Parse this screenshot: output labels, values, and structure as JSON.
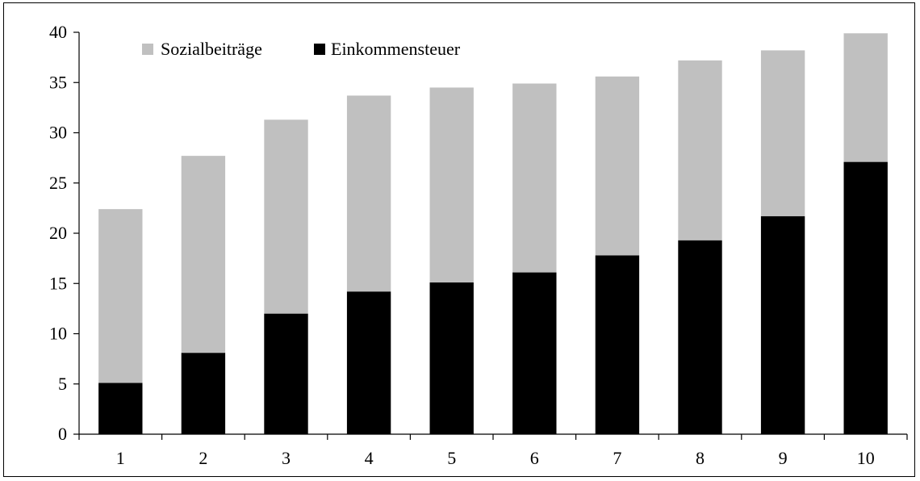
{
  "chart_data": {
    "type": "bar",
    "stacked": true,
    "categories": [
      "1",
      "2",
      "3",
      "4",
      "5",
      "6",
      "7",
      "8",
      "9",
      "10"
    ],
    "series": [
      {
        "name": "Einkommensteuer",
        "color": "#000000",
        "values": [
          5.1,
          8.1,
          12.0,
          14.2,
          15.1,
          16.1,
          17.8,
          19.3,
          21.7,
          27.1
        ]
      },
      {
        "name": "Sozialbeiträge",
        "color": "#c0c0c0",
        "values": [
          17.3,
          19.6,
          19.3,
          19.5,
          19.4,
          18.8,
          17.8,
          17.9,
          16.5,
          12.8
        ]
      }
    ],
    "yticks": [
      "0",
      "5",
      "10",
      "15",
      "20",
      "25",
      "30",
      "35",
      "40"
    ],
    "ylim": [
      0,
      40
    ],
    "grid": false,
    "legend_position": "top-left",
    "legend_order": [
      "Sozialbeiträge",
      "Einkommensteuer"
    ]
  }
}
